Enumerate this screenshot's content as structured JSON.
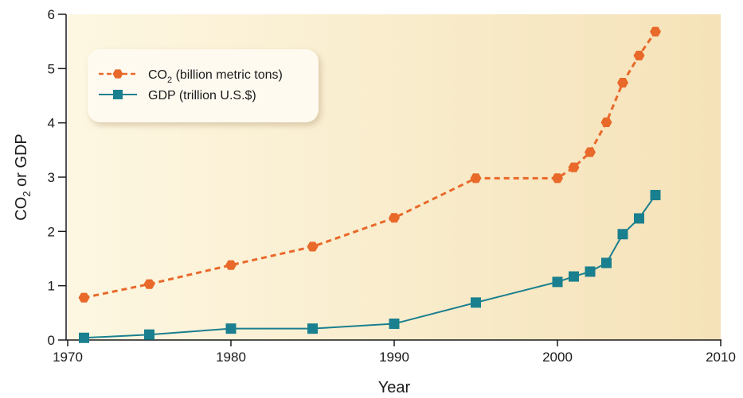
{
  "chart_data": {
    "type": "line",
    "x_label": "Year",
    "y_label": "CO2 or GDP",
    "x_range": [
      1970,
      2010
    ],
    "y_range": [
      0,
      6
    ],
    "x_ticks": [
      1970,
      1980,
      1990,
      2000,
      2010
    ],
    "y_ticks": [
      0,
      1,
      2,
      3,
      4,
      5,
      6
    ],
    "grid": false,
    "legend_position": "top-left",
    "colors": {
      "co2": "#e8692a",
      "gdp": "#1a7f8e",
      "background_start": "#fdf6df",
      "background_end": "#f6e4bd"
    },
    "series": [
      {
        "name": "CO2 (billion metric tons)",
        "marker": "hexagon",
        "line_style": "dashed",
        "x": [
          1971,
          1975,
          1980,
          1985,
          1990,
          1995,
          2000,
          2001,
          2002,
          2003,
          2004,
          2005,
          2006
        ],
        "y": [
          0.78,
          1.03,
          1.38,
          1.72,
          2.25,
          2.98,
          2.98,
          3.18,
          3.46,
          4.01,
          4.74,
          5.24,
          5.68
        ]
      },
      {
        "name": "GDP (trillion U.S.$)",
        "marker": "square",
        "line_style": "solid",
        "x": [
          1971,
          1975,
          1980,
          1985,
          1990,
          1995,
          2000,
          2001,
          2002,
          2003,
          2004,
          2005,
          2006
        ],
        "y": [
          0.04,
          0.1,
          0.21,
          0.21,
          0.3,
          0.69,
          1.07,
          1.17,
          1.26,
          1.42,
          1.95,
          2.24,
          2.67
        ]
      }
    ]
  },
  "legend": {
    "co2_main": "CO",
    "co2_sub": "2",
    "co2_rest": " (billion metric tons)",
    "gdp": "GDP (trillion U.S.$)"
  },
  "axis_titles": {
    "x": "Year",
    "y_main": "CO",
    "y_sub": "2",
    "y_rest": " or GDP"
  }
}
